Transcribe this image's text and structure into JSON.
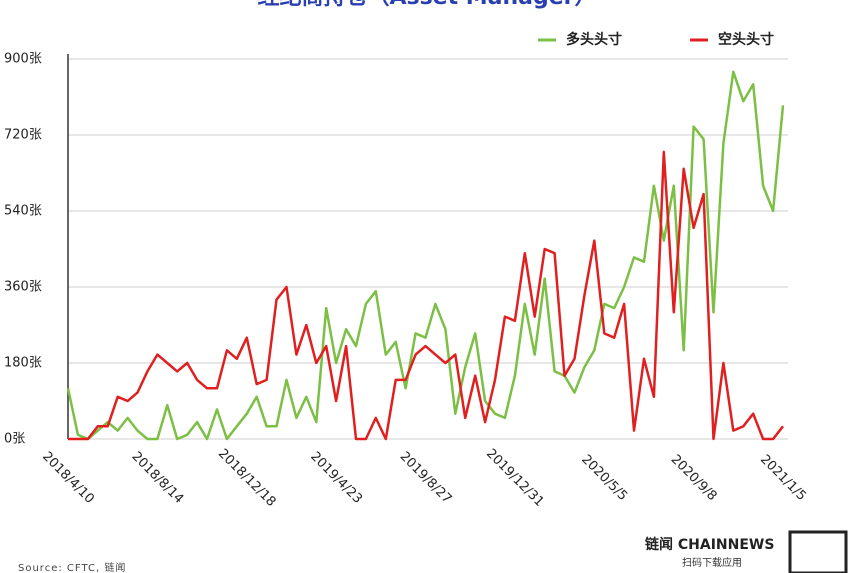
{
  "chart_data": {
    "type": "line",
    "title": "经纪商持仓（Asset Manager）",
    "categories": [
      "2018/4/10",
      null,
      null,
      null,
      null,
      null,
      null,
      null,
      null,
      "2018/8/14",
      null,
      null,
      null,
      null,
      null,
      null,
      null,
      null,
      "2018/12/18",
      null,
      null,
      null,
      null,
      null,
      null,
      null,
      null,
      "2019/4/23",
      null,
      null,
      null,
      null,
      null,
      null,
      null,
      null,
      "2019/8/27",
      null,
      null,
      null,
      null,
      null,
      null,
      null,
      null,
      "2019/12/31",
      null,
      null,
      null,
      null,
      null,
      null,
      null,
      null,
      "2020/5/5",
      null,
      null,
      null,
      null,
      null,
      null,
      null,
      null,
      "2020/9/8",
      null,
      null,
      null,
      null,
      null,
      null,
      null,
      null,
      "2021/1/5"
    ],
    "series": [
      {
        "name": "多头头寸",
        "color": "#7cbf45",
        "values": [
          120,
          10,
          0,
          20,
          40,
          20,
          50,
          20,
          0,
          0,
          80,
          0,
          10,
          40,
          0,
          70,
          0,
          30,
          60,
          100,
          30,
          30,
          140,
          50,
          100,
          40,
          310,
          180,
          260,
          220,
          320,
          350,
          200,
          230,
          120,
          250,
          240,
          320,
          260,
          60,
          170,
          250,
          90,
          60,
          50,
          150,
          320,
          200,
          380,
          160,
          150,
          110,
          170,
          210,
          320,
          310,
          360,
          430,
          420,
          600,
          470,
          600,
          210,
          740,
          710,
          300,
          700,
          870,
          800,
          840,
          600,
          540,
          790
        ]
      },
      {
        "name": "空头头寸",
        "color": "#e02020",
        "values": [
          0,
          0,
          0,
          30,
          30,
          100,
          90,
          110,
          160,
          200,
          180,
          160,
          180,
          140,
          120,
          120,
          210,
          190,
          240,
          130,
          140,
          330,
          360,
          200,
          270,
          180,
          220,
          90,
          220,
          0,
          0,
          50,
          0,
          140,
          140,
          200,
          220,
          200,
          180,
          200,
          50,
          150,
          40,
          140,
          290,
          280,
          440,
          290,
          450,
          440,
          150,
          190,
          340,
          470,
          250,
          240,
          320,
          20,
          190,
          100,
          680,
          300,
          640,
          500,
          580,
          0,
          180,
          20,
          30,
          60,
          0,
          0,
          30
        ]
      }
    ],
    "ylim": [
      0,
      900
    ],
    "yticks": [
      {
        "value": 0,
        "label": "0张"
      },
      {
        "value": 180,
        "label": "180张"
      },
      {
        "value": 360,
        "label": "360张"
      },
      {
        "value": 540,
        "label": "540张"
      },
      {
        "value": 720,
        "label": "720张"
      },
      {
        "value": 900,
        "label": "900张"
      }
    ],
    "grid": true,
    "legend": "top-right",
    "source": "Source: CFTC, 链闻",
    "logo": "链闻 CHAINNEWS",
    "logo_caption": "扫码下载应用"
  }
}
